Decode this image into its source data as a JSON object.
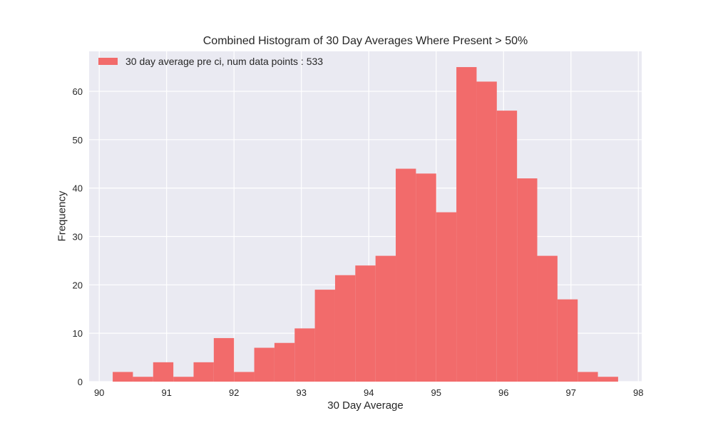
{
  "chart_data": {
    "type": "bar",
    "title": "Combined Histogram of 30 Day Averages Where Present > 50%",
    "xlabel": "30 Day Average",
    "ylabel": "Frequency",
    "xlim": [
      89.85,
      98.05
    ],
    "ylim": [
      0,
      68.25
    ],
    "xticks": [
      90,
      91,
      92,
      93,
      94,
      95,
      96,
      97,
      98
    ],
    "yticks": [
      0,
      10,
      20,
      30,
      40,
      50,
      60
    ],
    "grid": true,
    "legend_position": "top-left",
    "bin_edges": [
      90.2,
      90.5,
      90.8,
      91.1,
      91.4,
      91.7,
      92.0,
      92.3,
      92.6,
      92.9,
      93.2,
      93.5,
      93.8,
      94.1,
      94.4,
      94.7,
      95.0,
      95.3,
      95.6,
      95.9,
      96.2,
      96.5,
      96.8,
      97.1,
      97.4,
      97.7
    ],
    "series": [
      {
        "name": "30 day average pre ci, num data points : 533",
        "color": "#f26b6b",
        "values": [
          2,
          1,
          4,
          1,
          4,
          9,
          2,
          7,
          8,
          11,
          19,
          22,
          24,
          26,
          44,
          43,
          35,
          65,
          62,
          56,
          42,
          26,
          17,
          2,
          1
        ]
      }
    ],
    "background_color": "#eaeaf2",
    "grid_color": "#ffffff"
  }
}
